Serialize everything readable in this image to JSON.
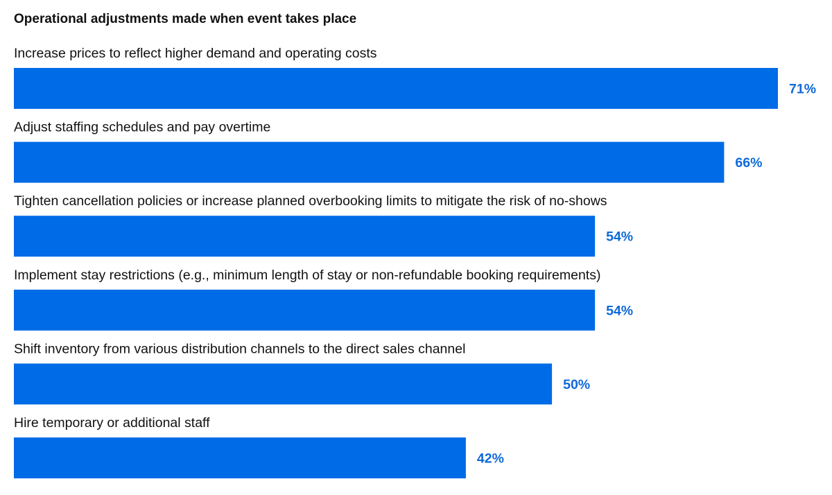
{
  "chart_data": {
    "type": "bar",
    "orientation": "horizontal",
    "title": "Operational adjustments made when event takes place",
    "categories": [
      "Increase prices to reflect higher demand and operating costs",
      "Adjust staffing schedules and pay overtime",
      "Tighten cancellation policies or increase planned overbooking limits to mitigate the risk of no-shows",
      "Implement stay restrictions (e.g., minimum length of stay or non-refundable booking requirements)",
      "Shift inventory from various distribution channels to the direct sales channel",
      "Hire temporary or additional staff"
    ],
    "values": [
      71,
      66,
      54,
      54,
      50,
      42
    ],
    "value_labels": [
      "71%",
      "66%",
      "54%",
      "54%",
      "50%",
      "42%"
    ],
    "unit": "%",
    "xlim": [
      0,
      71
    ],
    "grid": false,
    "legend": "none",
    "colors": {
      "bar": "#006be6",
      "value_label": "#0f6ad8",
      "category_label": "#111111",
      "title": "#111111"
    }
  }
}
